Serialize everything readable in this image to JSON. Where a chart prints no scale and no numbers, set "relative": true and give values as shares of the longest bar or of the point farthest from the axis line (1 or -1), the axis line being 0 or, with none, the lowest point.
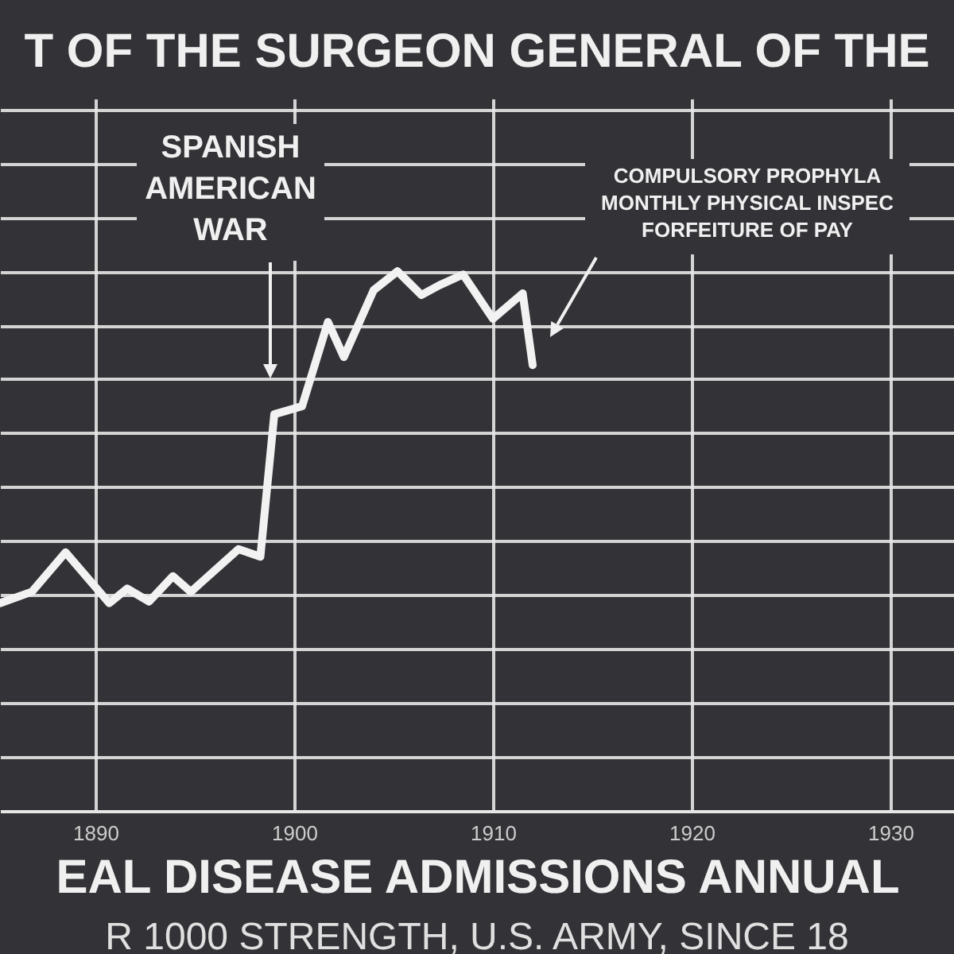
{
  "chart_data": {
    "type": "line",
    "title": "T OF THE SURGEON GENERAL OF THE",
    "xlabel": "EAL DISEASE ADMISSIONS ANNUAL",
    "relative": true,
    "grid": true,
    "x": [
      1885.2,
      1886.8,
      1888.5,
      1890.7,
      1891.6,
      1892.7,
      1893.9,
      1894.8,
      1897.2,
      1898.3,
      1899.0,
      1900.4,
      1901.7,
      1902.5,
      1904.0,
      1905.2,
      1906.4,
      1907.3,
      1908.5,
      1910.0,
      1911.5,
      1912.0
    ],
    "xlim": [
      1885.2,
      1933.2
    ],
    "xticks": [
      1890,
      1900,
      1910,
      1920,
      1930
    ],
    "series": [
      {
        "color": "#f2f2f2",
        "values": [
          0.385,
          0.406,
          0.479,
          0.385,
          0.412,
          0.388,
          0.435,
          0.406,
          0.485,
          0.471,
          0.735,
          0.75,
          0.906,
          0.841,
          0.965,
          1,
          0.956,
          0.974,
          0.994,
          0.912,
          0.959,
          0.826
        ]
      }
    ],
    "annotations": [
      "SPANISH\nAMERICAN\nWAR",
      "COMPULSORY PROPHYLA\nMONTHLY PHYSICAL INSPEC\nFORFEITURE OF PAY",
      "R 1000 STRENGTH, U.S. ARMY, SINCE 18"
    ]
  }
}
